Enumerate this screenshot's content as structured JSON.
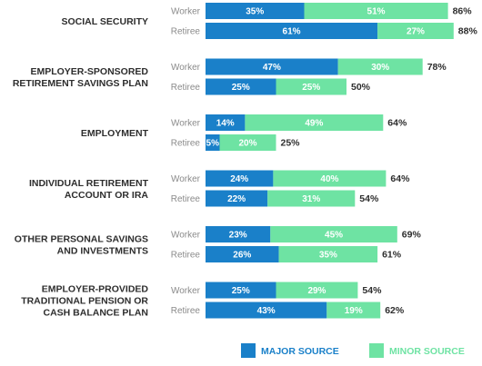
{
  "chart_data": {
    "type": "bar",
    "orientation": "horizontal",
    "stacked": true,
    "title": "",
    "xlabel": "",
    "ylabel": "",
    "xlim": [
      0,
      100
    ],
    "grid": false,
    "legend_position": "bottom-right",
    "colors": {
      "major": "#1a80c9",
      "minor": "#6ee3a3",
      "major_text": "#ffffff",
      "minor_text": "#ffffff"
    },
    "groups": [
      "Worker",
      "Retiree"
    ],
    "series": [
      {
        "name": "MAJOR SOURCE",
        "key": "major"
      },
      {
        "name": "MINOR SOURCE",
        "key": "minor"
      }
    ],
    "categories": [
      {
        "label_lines": [
          "SOCIAL SECURITY"
        ],
        "bars": [
          {
            "group": "Worker",
            "major": 35,
            "major_label": "35%",
            "minor": 51,
            "minor_label": "51%",
            "total_label": "86%"
          },
          {
            "group": "Retiree",
            "major": 61,
            "major_label": "61%",
            "minor": 27,
            "minor_label": "27%",
            "total_label": "88%"
          }
        ]
      },
      {
        "label_lines": [
          "EMPLOYER-SPONSORED",
          "RETIREMENT SAVINGS PLAN"
        ],
        "bars": [
          {
            "group": "Worker",
            "major": 47,
            "major_label": "47%",
            "minor": 30,
            "minor_label": "30%",
            "total_label": "78%"
          },
          {
            "group": "Retiree",
            "major": 25,
            "major_label": "25%",
            "minor": 25,
            "minor_label": "25%",
            "total_label": "50%"
          }
        ]
      },
      {
        "label_lines": [
          "EMPLOYMENT"
        ],
        "bars": [
          {
            "group": "Worker",
            "major": 14,
            "major_label": "14%",
            "minor": 49,
            "minor_label": "49%",
            "total_label": "64%"
          },
          {
            "group": "Retiree",
            "major": 5,
            "major_label": "5%",
            "minor": 20,
            "minor_label": "20%",
            "total_label": "25%"
          }
        ]
      },
      {
        "label_lines": [
          "INDIVIDUAL RETIREMENT",
          "ACCOUNT OR IRA"
        ],
        "bars": [
          {
            "group": "Worker",
            "major": 24,
            "major_label": "24%",
            "minor": 40,
            "minor_label": "40%",
            "total_label": "64%"
          },
          {
            "group": "Retiree",
            "major": 22,
            "major_label": "22%",
            "minor": 31,
            "minor_label": "31%",
            "total_label": "54%"
          }
        ]
      },
      {
        "label_lines": [
          "OTHER PERSONAL SAVINGS",
          "AND INVESTMENTS"
        ],
        "bars": [
          {
            "group": "Worker",
            "major": 23,
            "major_label": "23%",
            "minor": 45,
            "minor_label": "45%",
            "total_label": "69%"
          },
          {
            "group": "Retiree",
            "major": 26,
            "major_label": "26%",
            "minor": 35,
            "minor_label": "35%",
            "total_label": "61%"
          }
        ]
      },
      {
        "label_lines": [
          "EMPLOYER-PROVIDED",
          "TRADITIONAL PENSION OR",
          "CASH BALANCE PLAN"
        ],
        "bars": [
          {
            "group": "Worker",
            "major": 25,
            "major_label": "25%",
            "minor": 29,
            "minor_label": "29%",
            "total_label": "54%"
          },
          {
            "group": "Retiree",
            "major": 43,
            "major_label": "43%",
            "minor": 19,
            "minor_label": "19%",
            "total_label": "62%"
          }
        ]
      }
    ]
  }
}
